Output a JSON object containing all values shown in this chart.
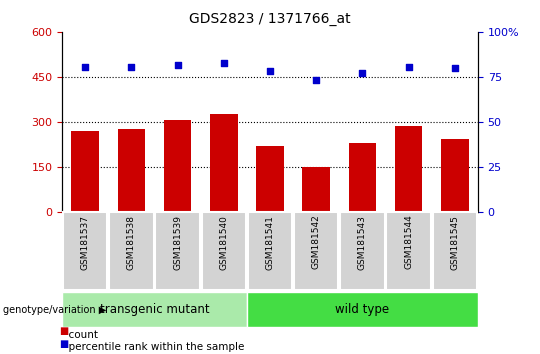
{
  "title": "GDS2823 / 1371766_at",
  "samples": [
    "GSM181537",
    "GSM181538",
    "GSM181539",
    "GSM181540",
    "GSM181541",
    "GSM181542",
    "GSM181543",
    "GSM181544",
    "GSM181545"
  ],
  "counts": [
    270,
    278,
    308,
    328,
    222,
    152,
    232,
    287,
    243
  ],
  "percentiles": [
    80.5,
    80.5,
    81.5,
    82.5,
    78.5,
    73.5,
    77.0,
    80.5,
    80.0
  ],
  "bar_color": "#cc0000",
  "dot_color": "#0000cc",
  "left_ylim": [
    0,
    600
  ],
  "left_yticks": [
    0,
    150,
    300,
    450,
    600
  ],
  "right_ylim": [
    0,
    100
  ],
  "right_yticks": [
    0,
    25,
    50,
    75,
    100
  ],
  "right_yticklabels": [
    "0",
    "25",
    "50",
    "75",
    "100%"
  ],
  "grid_values": [
    150,
    300,
    450
  ],
  "group1_label": "transgenic mutant",
  "group1_count": 4,
  "group2_label": "wild type",
  "group2_count": 5,
  "group_label_prefix": "genotype/variation",
  "group1_color": "#aaeaaa",
  "group2_color": "#44dd44",
  "legend_count_label": "count",
  "legend_percentile_label": "percentile rank within the sample",
  "left_tick_color": "#cc0000",
  "right_tick_color": "#0000cc",
  "xlabelbox_color": "#d3d3d3",
  "fig_bg": "#ffffff"
}
